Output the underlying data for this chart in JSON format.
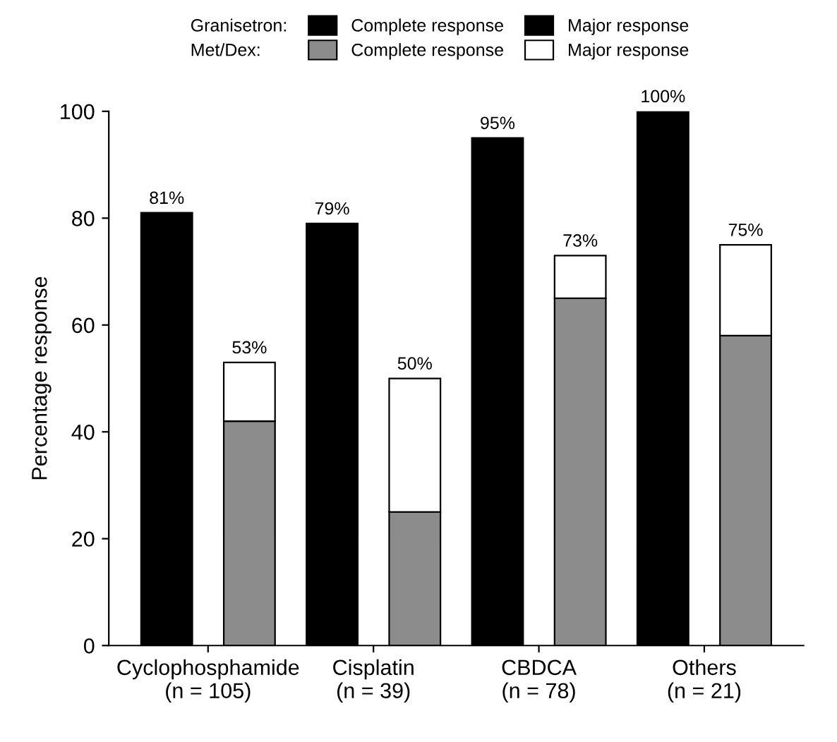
{
  "chart_data": {
    "type": "bar",
    "stacked": true,
    "ylabel": "Percentage response",
    "categories": [
      "Cyclophosphamide\n(n = 105)",
      null,
      "Cisplatin\n(n = 39)",
      null,
      "CBDCA\n(n = 78)",
      null,
      "Others\n(n = 21)",
      null
    ],
    "series": [
      {
        "name": "Complete response",
        "color": "#000000",
        "values": [
          81,
          null,
          79,
          null,
          95,
          null,
          100,
          null
        ]
      },
      {
        "name": "Major response",
        "color": "#000000",
        "values": [
          null,
          null,
          null,
          null,
          null,
          null,
          null,
          null
        ]
      },
      {
        "name": "Complete response",
        "color": "#8c8c8c",
        "values": [
          null,
          42,
          null,
          25,
          null,
          65,
          null,
          58
        ]
      },
      {
        "name": "Major response",
        "color": "#ffffff",
        "values": [
          null,
          11,
          null,
          25,
          null,
          8,
          null,
          17
        ]
      }
    ],
    "totals": [
      "81%",
      "53%",
      "79%",
      "50%",
      "95%",
      "73%",
      "100%",
      "75%"
    ],
    "annotations": [
      "Granisetron:",
      "Met/Dex:"
    ],
    "ylim": [
      0,
      100
    ],
    "yticks": [
      0,
      20,
      40,
      60,
      80,
      100
    ],
    "grid": false,
    "legend": "top"
  }
}
